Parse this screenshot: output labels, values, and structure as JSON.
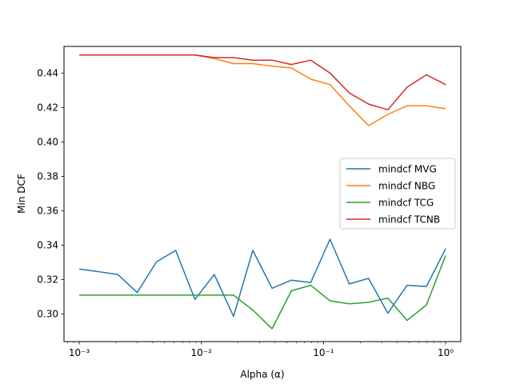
{
  "chart_data": {
    "type": "line",
    "x_scale": "log",
    "xlabel": "Alpha (α)",
    "ylabel": "Min DCF",
    "xlim": [
      0.00075,
      1.33
    ],
    "ylim": [
      0.284,
      0.4555
    ],
    "x_ticks": [
      0.001,
      0.01,
      0.1,
      1
    ],
    "x_tick_labels": [
      "10⁻³",
      "10⁻²",
      "10⁻¹",
      "10⁰"
    ],
    "y_ticks": [
      0.3,
      0.32,
      0.34,
      0.36,
      0.38,
      0.4,
      0.42,
      0.44
    ],
    "y_tick_labels": [
      "0.30",
      "0.32",
      "0.34",
      "0.36",
      "0.38",
      "0.40",
      "0.42",
      "0.44"
    ],
    "grid": false,
    "legend_position": "center-right",
    "x": [
      0.001,
      0.00144,
      0.00207,
      0.00298,
      0.00428,
      0.00616,
      0.00886,
      0.01274,
      0.01833,
      0.02637,
      0.03793,
      0.05456,
      0.07848,
      0.11288,
      0.16238,
      0.23357,
      0.33598,
      0.48329,
      0.69519,
      1.0
    ],
    "series": [
      {
        "name": "mindcf MVG",
        "color": "#1f77b4",
        "values": [
          0.3262,
          0.3246,
          0.323,
          0.3125,
          0.3303,
          0.337,
          0.3085,
          0.323,
          0.2987,
          0.337,
          0.315,
          0.3197,
          0.3183,
          0.3435,
          0.3175,
          0.3207,
          0.3005,
          0.3167,
          0.316,
          0.338
        ]
      },
      {
        "name": "mindcf NBG",
        "color": "#ff7f0e",
        "values": [
          0.4505,
          0.4505,
          0.4505,
          0.4505,
          0.4505,
          0.4505,
          0.4505,
          0.4485,
          0.4455,
          0.4455,
          0.444,
          0.443,
          0.4365,
          0.4333,
          0.421,
          0.4095,
          0.416,
          0.421,
          0.421,
          0.4193
        ]
      },
      {
        "name": "mindcf TCG",
        "color": "#2ca02c",
        "values": [
          0.311,
          0.311,
          0.311,
          0.311,
          0.311,
          0.311,
          0.311,
          0.311,
          0.311,
          0.3023,
          0.2915,
          0.3135,
          0.3167,
          0.3077,
          0.306,
          0.3068,
          0.3093,
          0.2963,
          0.3053,
          0.334
        ]
      },
      {
        "name": "mindcf TCNB",
        "color": "#d62728",
        "values": [
          0.4505,
          0.4505,
          0.4505,
          0.4505,
          0.4505,
          0.4505,
          0.4505,
          0.449,
          0.449,
          0.4475,
          0.4475,
          0.445,
          0.4475,
          0.44,
          0.4285,
          0.422,
          0.4187,
          0.4318,
          0.439,
          0.4333
        ]
      }
    ]
  }
}
